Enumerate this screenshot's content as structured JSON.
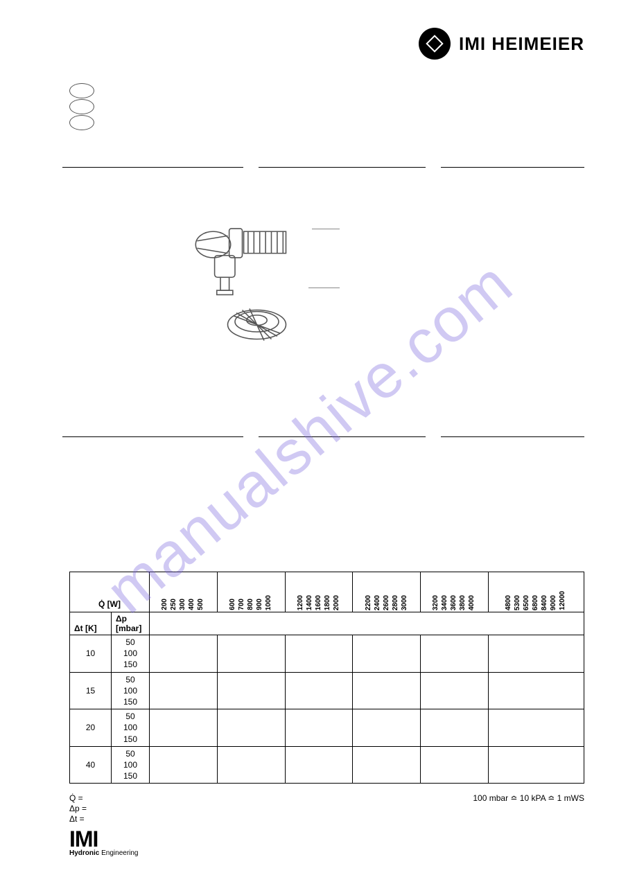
{
  "brand": {
    "name": "IMI HEIMEIER",
    "accent_color": "#000000"
  },
  "watermark": "manualshive.com",
  "flags": {
    "count": 3
  },
  "table": {
    "q_label": "Q̇ [W]",
    "dt_label": "Δt [K]",
    "dp_label": "Δp [mbar]",
    "col_groups": [
      [
        "200",
        "250",
        "300",
        "400",
        "500"
      ],
      [
        "600",
        "700",
        "800",
        "900",
        "1000"
      ],
      [
        "1200",
        "1400",
        "1600",
        "1800",
        "2000"
      ],
      [
        "2200",
        "2400",
        "2600",
        "2800",
        "3000"
      ],
      [
        "3200",
        "3400",
        "3600",
        "3800",
        "4000"
      ],
      [
        "4800",
        "5300",
        "6500",
        "6800",
        "8400",
        "9000",
        "12000"
      ]
    ],
    "dt_values": [
      "10",
      "15",
      "20",
      "40"
    ],
    "dp_values": [
      "50",
      "100",
      "150"
    ]
  },
  "footer": {
    "q_note": "Q̇ =",
    "dp_note": "Δp =",
    "dt_note": "Δt =",
    "conversion": "100 mbar ≏ 10 kPA ≏ 1 mWS",
    "logo_main": "IMI",
    "logo_sub_bold": "Hydronic",
    "logo_sub_rest": " Engineering"
  },
  "style": {
    "background": "#ffffff",
    "text_color": "#000000",
    "watermark_color": "rgba(120,100,220,0.35)",
    "border_color": "#000000",
    "font_size_body": 12,
    "font_size_brand": 26
  }
}
